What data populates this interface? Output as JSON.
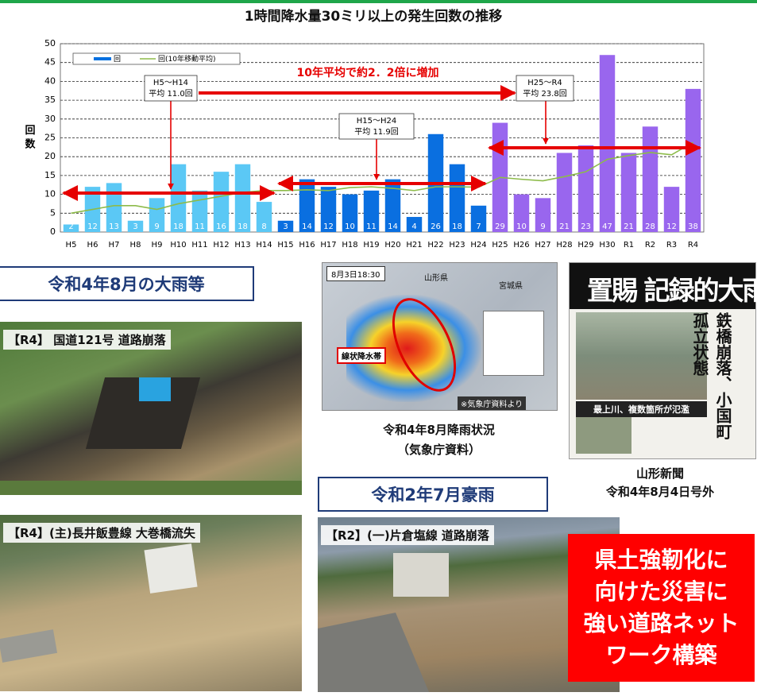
{
  "chart_data": {
    "type": "bar",
    "title": "1時間降水量30ミリ以上の発生回数の推移",
    "y_label": "回 数",
    "categories": [
      "H5",
      "H6",
      "H7",
      "H8",
      "H9",
      "H10",
      "H11",
      "H12",
      "H13",
      "H14",
      "H15",
      "H16",
      "H17",
      "H18",
      "H19",
      "H20",
      "H21",
      "H22",
      "H23",
      "H24",
      "H25",
      "H26",
      "H27",
      "H28",
      "H29",
      "H30",
      "R1",
      "R2",
      "R3",
      "R4"
    ],
    "series": [
      {
        "name": "回",
        "color": "#0070e0",
        "colors": [
          "#5bc8f5",
          "#5bc8f5",
          "#5bc8f5",
          "#5bc8f5",
          "#5bc8f5",
          "#5bc8f5",
          "#5bc8f5",
          "#5bc8f5",
          "#5bc8f5",
          "#5bc8f5",
          "#0a6fe0",
          "#0a6fe0",
          "#0a6fe0",
          "#0a6fe0",
          "#0a6fe0",
          "#0a6fe0",
          "#0a6fe0",
          "#0a6fe0",
          "#0a6fe0",
          "#0a6fe0",
          "#9966ee",
          "#9966ee",
          "#9966ee",
          "#9966ee",
          "#9966ee",
          "#9966ee",
          "#9966ee",
          "#9966ee",
          "#9966ee",
          "#9966ee"
        ],
        "values": [
          2,
          12,
          13,
          3,
          9,
          18,
          11,
          16,
          18,
          8,
          3,
          14,
          12,
          10,
          11,
          14,
          4,
          26,
          18,
          7,
          29,
          10,
          9,
          21,
          23,
          47,
          21,
          28,
          12,
          38
        ]
      },
      {
        "name": "回(10年移動平均)",
        "color": "#8dbb4a",
        "type": "line",
        "values": [
          5,
          6,
          7,
          7,
          6,
          7.5,
          8.5,
          9.5,
          10.5,
          11,
          11,
          11.2,
          11,
          11.8,
          12,
          11.6,
          11,
          12,
          12,
          11.9,
          14.5,
          14,
          13.6,
          14.7,
          16,
          19.3,
          20.3,
          21.1,
          20.5,
          23.8
        ]
      }
    ],
    "ylim": [
      0,
      50
    ],
    "yticks": [
      0,
      5,
      10,
      15,
      20,
      25,
      30,
      35,
      40,
      45,
      50
    ],
    "grid": true,
    "annotations": [
      {
        "lines": [
          "H5～H14",
          "平均 11.0回"
        ]
      },
      {
        "lines": [
          "H15～H24",
          "平均 11.9回"
        ]
      },
      {
        "lines": [
          "H25～R4",
          "平均 23.8回"
        ]
      }
    ],
    "increase_note": "10年平均で約2．2倍に増加"
  },
  "heading_r4": "令和4年8月の大雨等",
  "photos": [
    {
      "caption": "【R4】 国道121号 道路崩落"
    },
    {
      "caption": "【R4】(主)長井飯豊線  大巻橋流失"
    },
    {
      "caption": "【R2】(一)片倉塩線 道路崩落"
    }
  ],
  "rain_map": {
    "time": "8月3日18:30",
    "prefectures": [
      "山形県",
      "宮城県"
    ],
    "band_label": "線状降水帯",
    "source": "※気象庁資料より",
    "caption": [
      "令和4年8月降雨状況",
      "（気象庁資料）"
    ]
  },
  "newspaper": {
    "headline": "置賜 記録的大雨",
    "side_headline": "鉄橋崩落、小国町孤立状態",
    "photo_caption": "最上川、複数箇所が氾濫",
    "caption": [
      "山形新聞",
      "令和4年8月4日号外"
    ]
  },
  "heading_r2": "令和2年7月豪雨",
  "callout": [
    "県土強靭化に",
    "向けた災害に",
    "強い道路ネット",
    "ワーク構築"
  ]
}
